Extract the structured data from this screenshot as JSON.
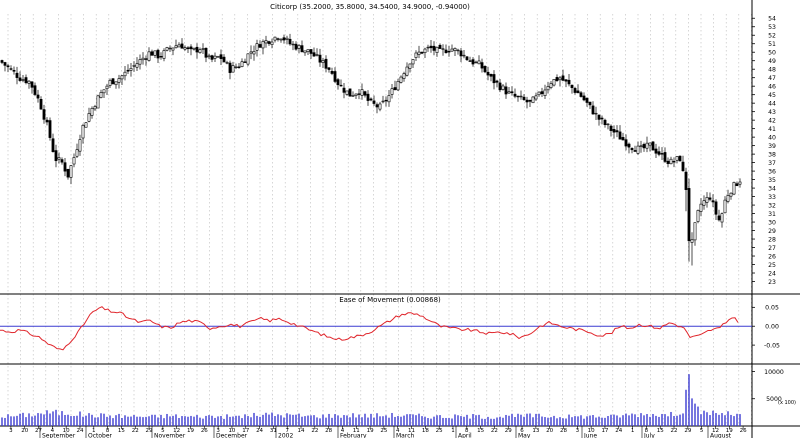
{
  "chart_data": {
    "type": "candlestick",
    "price_panel": {
      "title": "Citicorp (35.2000, 35.8000, 34.5400, 34.9000, -0.94000)",
      "ylim": [
        22,
        54.5
      ],
      "yticks": [
        23,
        24,
        25,
        26,
        27,
        28,
        29,
        30,
        31,
        32,
        33,
        34,
        35,
        36,
        37,
        38,
        39,
        40,
        41,
        42,
        43,
        44,
        45,
        46,
        47,
        48,
        49,
        50,
        51,
        52,
        53,
        54
      ],
      "close_path": [
        [
          0,
          49
        ],
        [
          10,
          48
        ],
        [
          20,
          47
        ],
        [
          30,
          46.5
        ],
        [
          40,
          44
        ],
        [
          48,
          41
        ],
        [
          55,
          37.5
        ],
        [
          62,
          37
        ],
        [
          68,
          35.5
        ],
        [
          75,
          38
        ],
        [
          82,
          41
        ],
        [
          90,
          43
        ],
        [
          100,
          45
        ],
        [
          110,
          46.5
        ],
        [
          120,
          47
        ],
        [
          130,
          48
        ],
        [
          140,
          49
        ],
        [
          150,
          50
        ],
        [
          160,
          49.5
        ],
        [
          170,
          50.5
        ],
        [
          180,
          51
        ],
        [
          190,
          50
        ],
        [
          200,
          50.5
        ],
        [
          210,
          49
        ],
        [
          220,
          49.5
        ],
        [
          230,
          48
        ],
        [
          240,
          48.5
        ],
        [
          250,
          50
        ],
        [
          260,
          51
        ],
        [
          270,
          51.5
        ],
        [
          280,
          52
        ],
        [
          290,
          51
        ],
        [
          300,
          50.5
        ],
        [
          310,
          50
        ],
        [
          320,
          49
        ],
        [
          330,
          48
        ],
        [
          340,
          46
        ],
        [
          350,
          45
        ],
        [
          360,
          45.5
        ],
        [
          370,
          44
        ],
        [
          380,
          43.5
        ],
        [
          390,
          45
        ],
        [
          400,
          47
        ],
        [
          410,
          49
        ],
        [
          420,
          50
        ],
        [
          430,
          50.5
        ],
        [
          440,
          50
        ],
        [
          450,
          50.5
        ],
        [
          460,
          50
        ],
        [
          470,
          49
        ],
        [
          480,
          48.5
        ],
        [
          490,
          47
        ],
        [
          500,
          46
        ],
        [
          510,
          45
        ],
        [
          520,
          44.5
        ],
        [
          530,
          44
        ],
        [
          540,
          45
        ],
        [
          550,
          46.5
        ],
        [
          560,
          47
        ],
        [
          570,
          46
        ],
        [
          580,
          45
        ],
        [
          590,
          43.5
        ],
        [
          600,
          42
        ],
        [
          610,
          41
        ],
        [
          620,
          40
        ],
        [
          630,
          39
        ],
        [
          640,
          38.5
        ],
        [
          650,
          39
        ],
        [
          660,
          38
        ],
        [
          670,
          37
        ],
        [
          680,
          37.5
        ],
        [
          686,
          34
        ],
        [
          690,
          26
        ],
        [
          694,
          29
        ],
        [
          700,
          32
        ],
        [
          710,
          33
        ],
        [
          716,
          31
        ],
        [
          720,
          30
        ],
        [
          726,
          33
        ],
        [
          732,
          34
        ],
        [
          740,
          35
        ]
      ]
    },
    "oscillator_panel": {
      "title": "Ease of Movement (0.00868)",
      "ylim": [
        -0.1,
        0.08
      ],
      "yticks": [
        "0.05",
        "0.00",
        "-0.05"
      ],
      "zero_line": 0.0,
      "values": [
        [
          0,
          -0.01
        ],
        [
          10,
          -0.015
        ],
        [
          20,
          -0.01
        ],
        [
          30,
          -0.02
        ],
        [
          40,
          -0.03
        ],
        [
          50,
          -0.05
        ],
        [
          58,
          -0.06
        ],
        [
          62,
          -0.065
        ],
        [
          70,
          -0.04
        ],
        [
          80,
          -0.01
        ],
        [
          90,
          0.03
        ],
        [
          100,
          0.05
        ],
        [
          110,
          0.04
        ],
        [
          120,
          0.035
        ],
        [
          130,
          0.02
        ],
        [
          140,
          0.01
        ],
        [
          150,
          0.015
        ],
        [
          160,
          0.0
        ],
        [
          170,
          -0.005
        ],
        [
          180,
          0.01
        ],
        [
          190,
          0.015
        ],
        [
          200,
          0.01
        ],
        [
          210,
          -0.005
        ],
        [
          220,
          0.0
        ],
        [
          230,
          0.005
        ],
        [
          240,
          0.0
        ],
        [
          250,
          0.01
        ],
        [
          260,
          0.02
        ],
        [
          270,
          0.015
        ],
        [
          280,
          0.02
        ],
        [
          290,
          0.01
        ],
        [
          300,
          0.0
        ],
        [
          310,
          -0.01
        ],
        [
          320,
          -0.02
        ],
        [
          330,
          -0.03
        ],
        [
          340,
          -0.035
        ],
        [
          350,
          -0.03
        ],
        [
          360,
          -0.025
        ],
        [
          370,
          -0.015
        ],
        [
          380,
          0.0
        ],
        [
          390,
          0.015
        ],
        [
          400,
          0.03
        ],
        [
          410,
          0.035
        ],
        [
          420,
          0.03
        ],
        [
          430,
          0.015
        ],
        [
          440,
          0.0
        ],
        [
          450,
          -0.005
        ],
        [
          460,
          -0.008
        ],
        [
          470,
          -0.01
        ],
        [
          480,
          -0.015
        ],
        [
          490,
          -0.02
        ],
        [
          500,
          -0.015
        ],
        [
          510,
          -0.02
        ],
        [
          520,
          -0.03
        ],
        [
          530,
          -0.02
        ],
        [
          540,
          0.0
        ],
        [
          550,
          0.01
        ],
        [
          560,
          0.0
        ],
        [
          570,
          -0.005
        ],
        [
          580,
          -0.01
        ],
        [
          590,
          -0.015
        ],
        [
          600,
          -0.025
        ],
        [
          610,
          -0.02
        ],
        [
          620,
          0.0
        ],
        [
          630,
          -0.005
        ],
        [
          640,
          0.005
        ],
        [
          650,
          0.0
        ],
        [
          660,
          -0.005
        ],
        [
          670,
          0.01
        ],
        [
          680,
          0.0
        ],
        [
          686,
          -0.01
        ],
        [
          690,
          -0.03
        ],
        [
          700,
          -0.025
        ],
        [
          710,
          -0.01
        ],
        [
          720,
          -0.005
        ],
        [
          728,
          0.015
        ],
        [
          732,
          0.025
        ],
        [
          740,
          0.01
        ]
      ]
    },
    "volume_panel": {
      "ylim": [
        0,
        11000
      ],
      "yticks": [
        "10000",
        "5000"
      ],
      "unit_label": "(x 100)",
      "values": [
        [
          10,
          1800
        ],
        [
          30,
          2100
        ],
        [
          50,
          2500
        ],
        [
          70,
          2300
        ],
        [
          90,
          2000
        ],
        [
          110,
          1900
        ],
        [
          130,
          1800
        ],
        [
          150,
          1700
        ],
        [
          170,
          1900
        ],
        [
          190,
          1700
        ],
        [
          210,
          1800
        ],
        [
          230,
          1700
        ],
        [
          250,
          1900
        ],
        [
          270,
          2100
        ],
        [
          290,
          2000
        ],
        [
          310,
          1800
        ],
        [
          330,
          1900
        ],
        [
          350,
          2000
        ],
        [
          370,
          1900
        ],
        [
          390,
          2000
        ],
        [
          410,
          1900
        ],
        [
          430,
          1800
        ],
        [
          450,
          1700
        ],
        [
          470,
          1800
        ],
        [
          490,
          1700
        ],
        [
          510,
          1800
        ],
        [
          530,
          1900
        ],
        [
          550,
          1800
        ],
        [
          570,
          1700
        ],
        [
          590,
          1800
        ],
        [
          610,
          1700
        ],
        [
          630,
          2100
        ],
        [
          650,
          2200
        ],
        [
          670,
          2000
        ],
        [
          684,
          3000
        ],
        [
          686,
          6000
        ],
        [
          688,
          9500
        ],
        [
          690,
          4500
        ],
        [
          700,
          2600
        ],
        [
          720,
          2300
        ],
        [
          740,
          2000
        ]
      ]
    },
    "x_axis": {
      "tick_labels": [
        "3",
        "20",
        "27",
        "4",
        "10",
        "24",
        "1",
        "8",
        "15",
        "22",
        "29",
        "5",
        "12",
        "19",
        "26",
        "3",
        "10",
        "17",
        "24",
        "31",
        "7",
        "14",
        "22",
        "28",
        "4",
        "11",
        "19",
        "25",
        "4",
        "11",
        "18",
        "25",
        "1",
        "8",
        "15",
        "22",
        "29",
        "6",
        "13",
        "20",
        "28",
        "3",
        "10",
        "17",
        "24",
        "1",
        "8",
        "15",
        "22",
        "29",
        "5",
        "12",
        "19",
        "26"
      ],
      "month_labels": [
        "September",
        "October",
        "November",
        "December",
        "2002",
        "February",
        "March",
        "April",
        "May",
        "June",
        "July",
        "August"
      ]
    }
  }
}
